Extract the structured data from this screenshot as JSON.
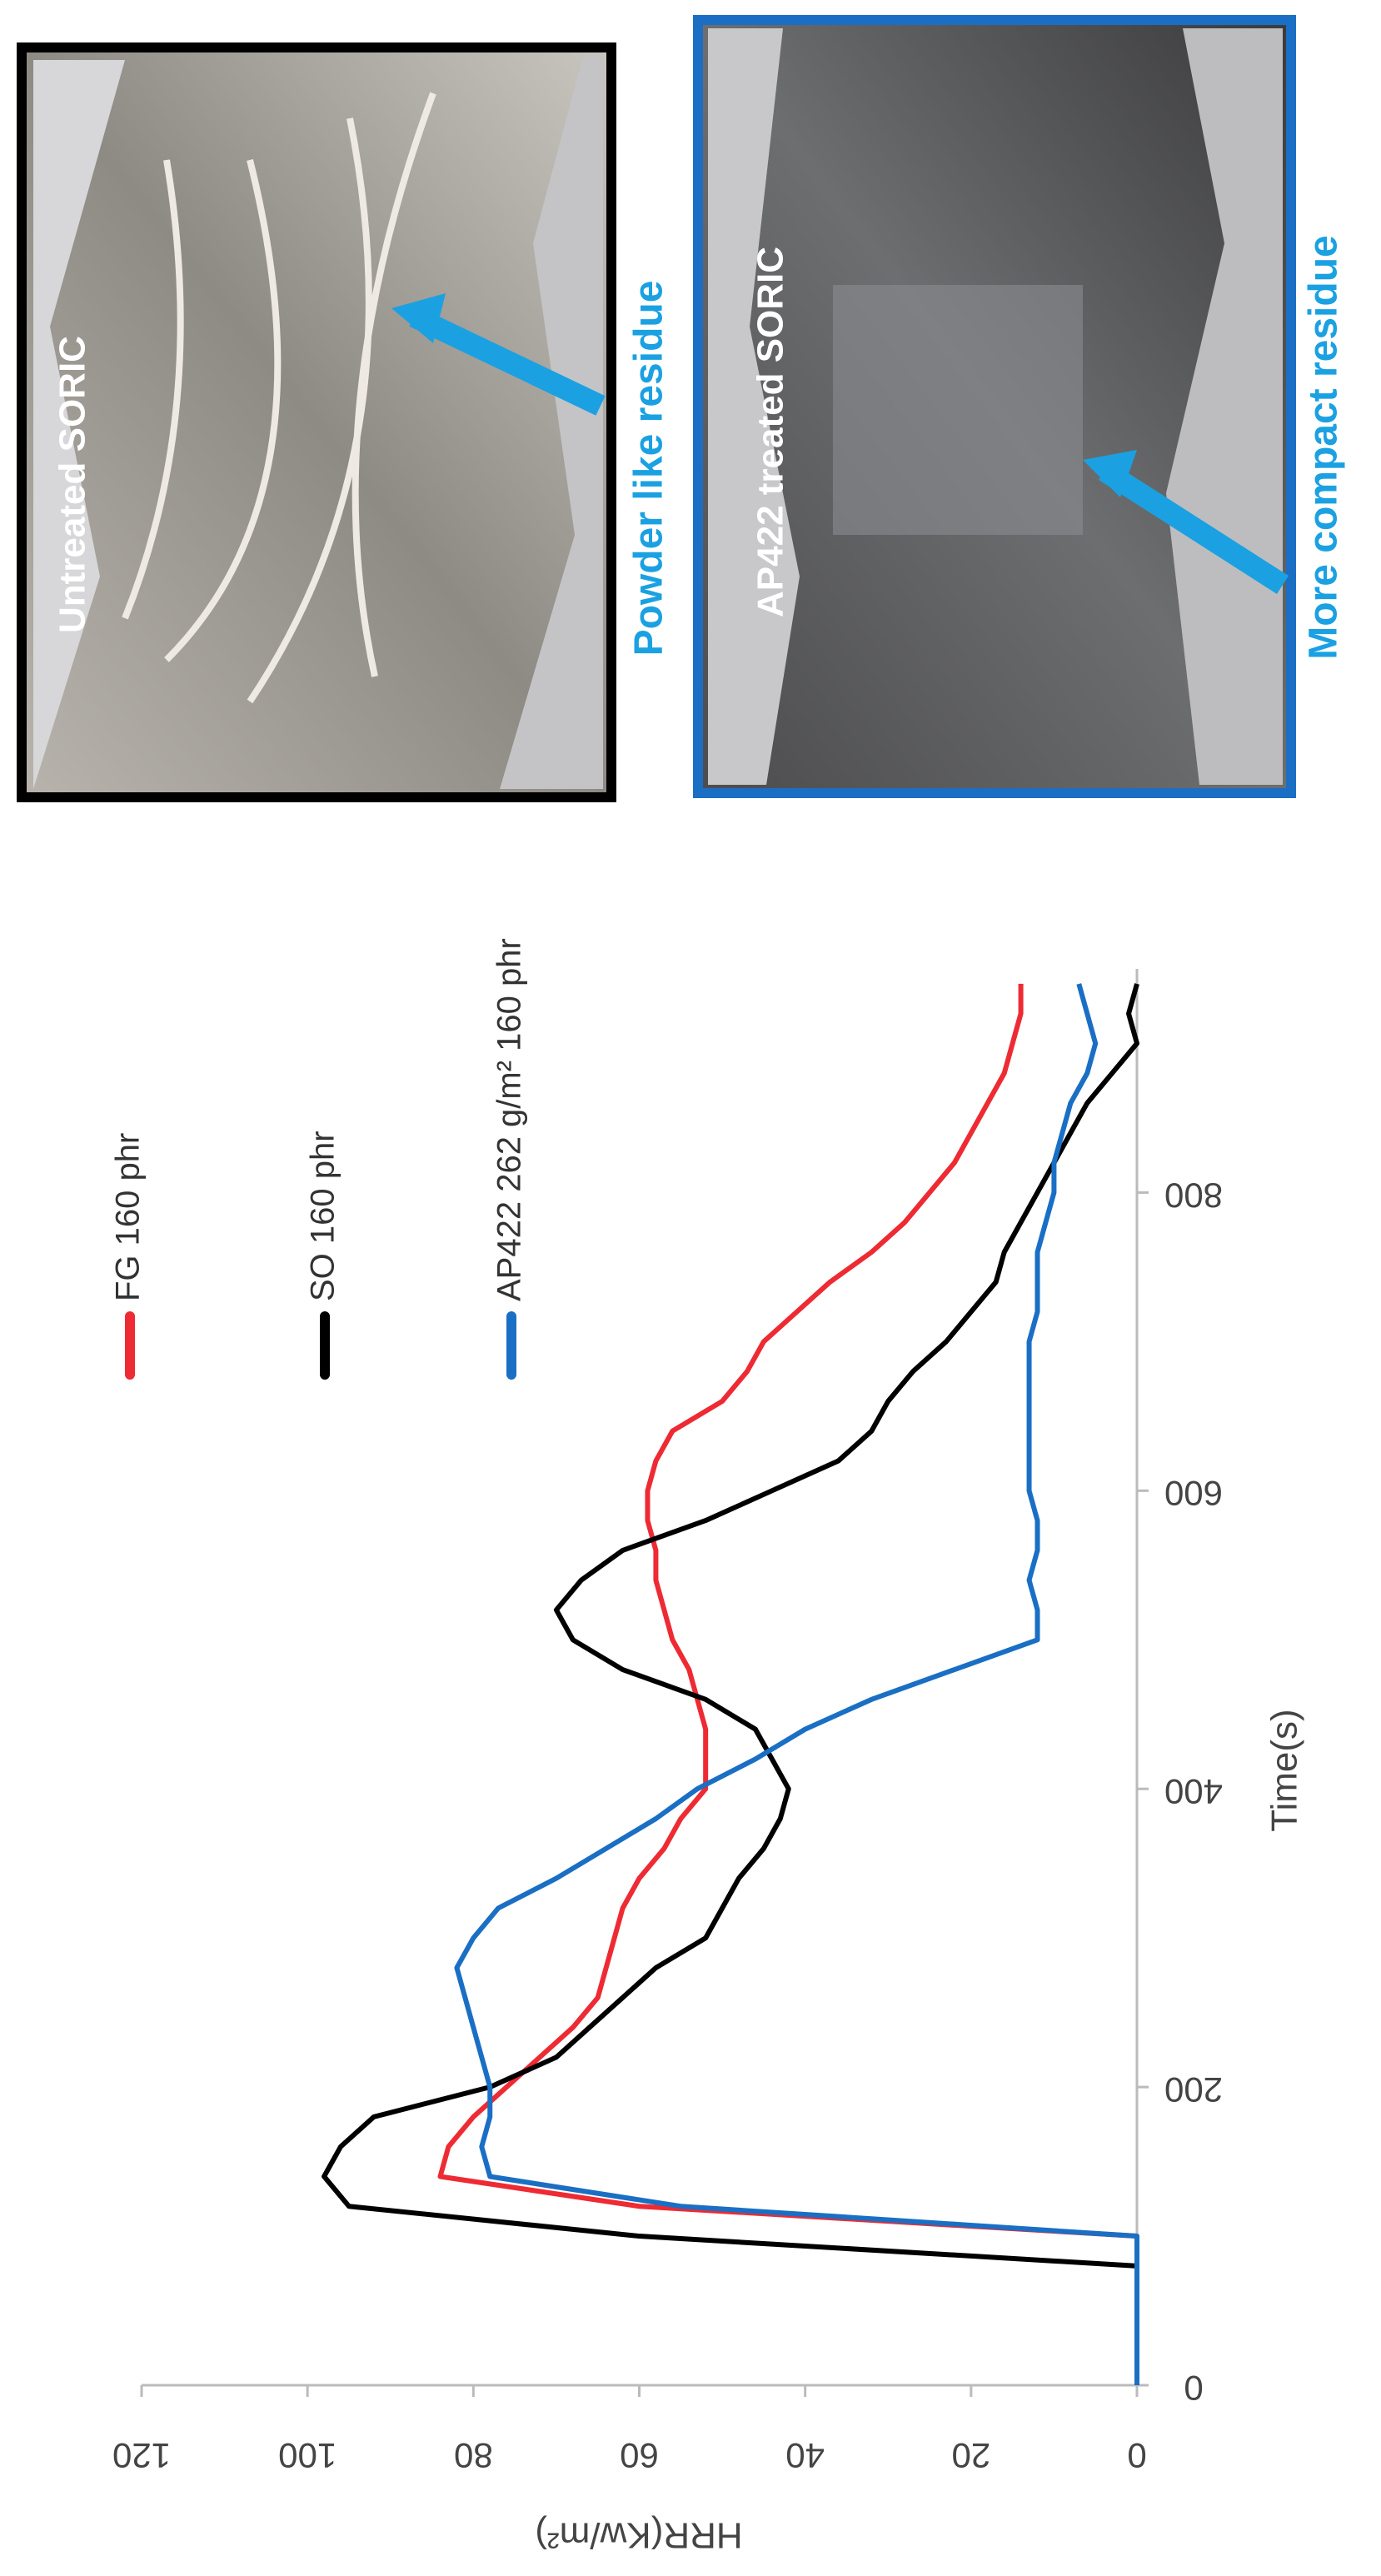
{
  "chart_data": {
    "type": "line",
    "xlabel": "Time(s)",
    "ylabel": "HRR(Kw/m²)",
    "x": [
      0,
      20,
      40,
      60,
      80,
      100,
      120,
      140,
      160,
      180,
      200,
      220,
      240,
      260,
      280,
      300,
      320,
      340,
      360,
      380,
      400,
      420,
      440,
      460,
      480,
      500,
      520,
      540,
      560,
      580,
      600,
      620,
      640,
      660,
      680,
      700,
      720,
      740,
      760,
      780,
      800,
      820,
      840,
      860,
      880,
      900,
      920,
      940
    ],
    "series": [
      {
        "name": "FG 160 phr",
        "color": "#ee2a33",
        "values": [
          0,
          0,
          0,
          0,
          0,
          0,
          60,
          84,
          83,
          80,
          76,
          72,
          68,
          65,
          64,
          63,
          62,
          60,
          57,
          55,
          52,
          52,
          52,
          53,
          54,
          56,
          57,
          58,
          58,
          59,
          59,
          58,
          56,
          50,
          47,
          45,
          41,
          37,
          32,
          28,
          25,
          22,
          20,
          18,
          16,
          15,
          14,
          14
        ]
      },
      {
        "name": "SO 160 phr",
        "color": "#000000",
        "values": [
          0,
          0,
          0,
          0,
          0,
          60,
          95,
          98,
          96,
          92,
          78,
          70,
          66,
          62,
          58,
          52,
          50,
          48,
          45,
          43,
          42,
          44,
          46,
          52,
          62,
          68,
          70,
          67,
          62,
          52,
          44,
          36,
          32,
          30,
          27,
          23,
          20,
          17,
          16,
          14,
          12,
          10,
          8,
          6,
          3,
          0,
          1,
          0
        ]
      },
      {
        "name": "AP422 262 g/m² 160 phr",
        "color": "#1a6fc4",
        "values": [
          0,
          0,
          0,
          0,
          0,
          0,
          55,
          78,
          79,
          78,
          78,
          79,
          80,
          81,
          82,
          80,
          77,
          70,
          64,
          58,
          53,
          46,
          40,
          32,
          22,
          12,
          12,
          13,
          12,
          12,
          13,
          13,
          13,
          13,
          13,
          13,
          12,
          12,
          12,
          11,
          10,
          10,
          9,
          8,
          6,
          5,
          6,
          7
        ]
      }
    ],
    "xlim": [
      0,
      950
    ],
    "xticks": [
      0,
      200,
      400,
      600,
      800
    ],
    "ylim": [
      0,
      120
    ],
    "yticks": [
      0,
      20,
      40,
      60,
      80,
      100,
      120
    ],
    "grid": false
  },
  "panels": [
    {
      "label": "Untreated SORIC",
      "caption": "Powder like residue"
    },
    {
      "label": "AP422 treated SORIC",
      "caption": "More compact residue"
    }
  ]
}
